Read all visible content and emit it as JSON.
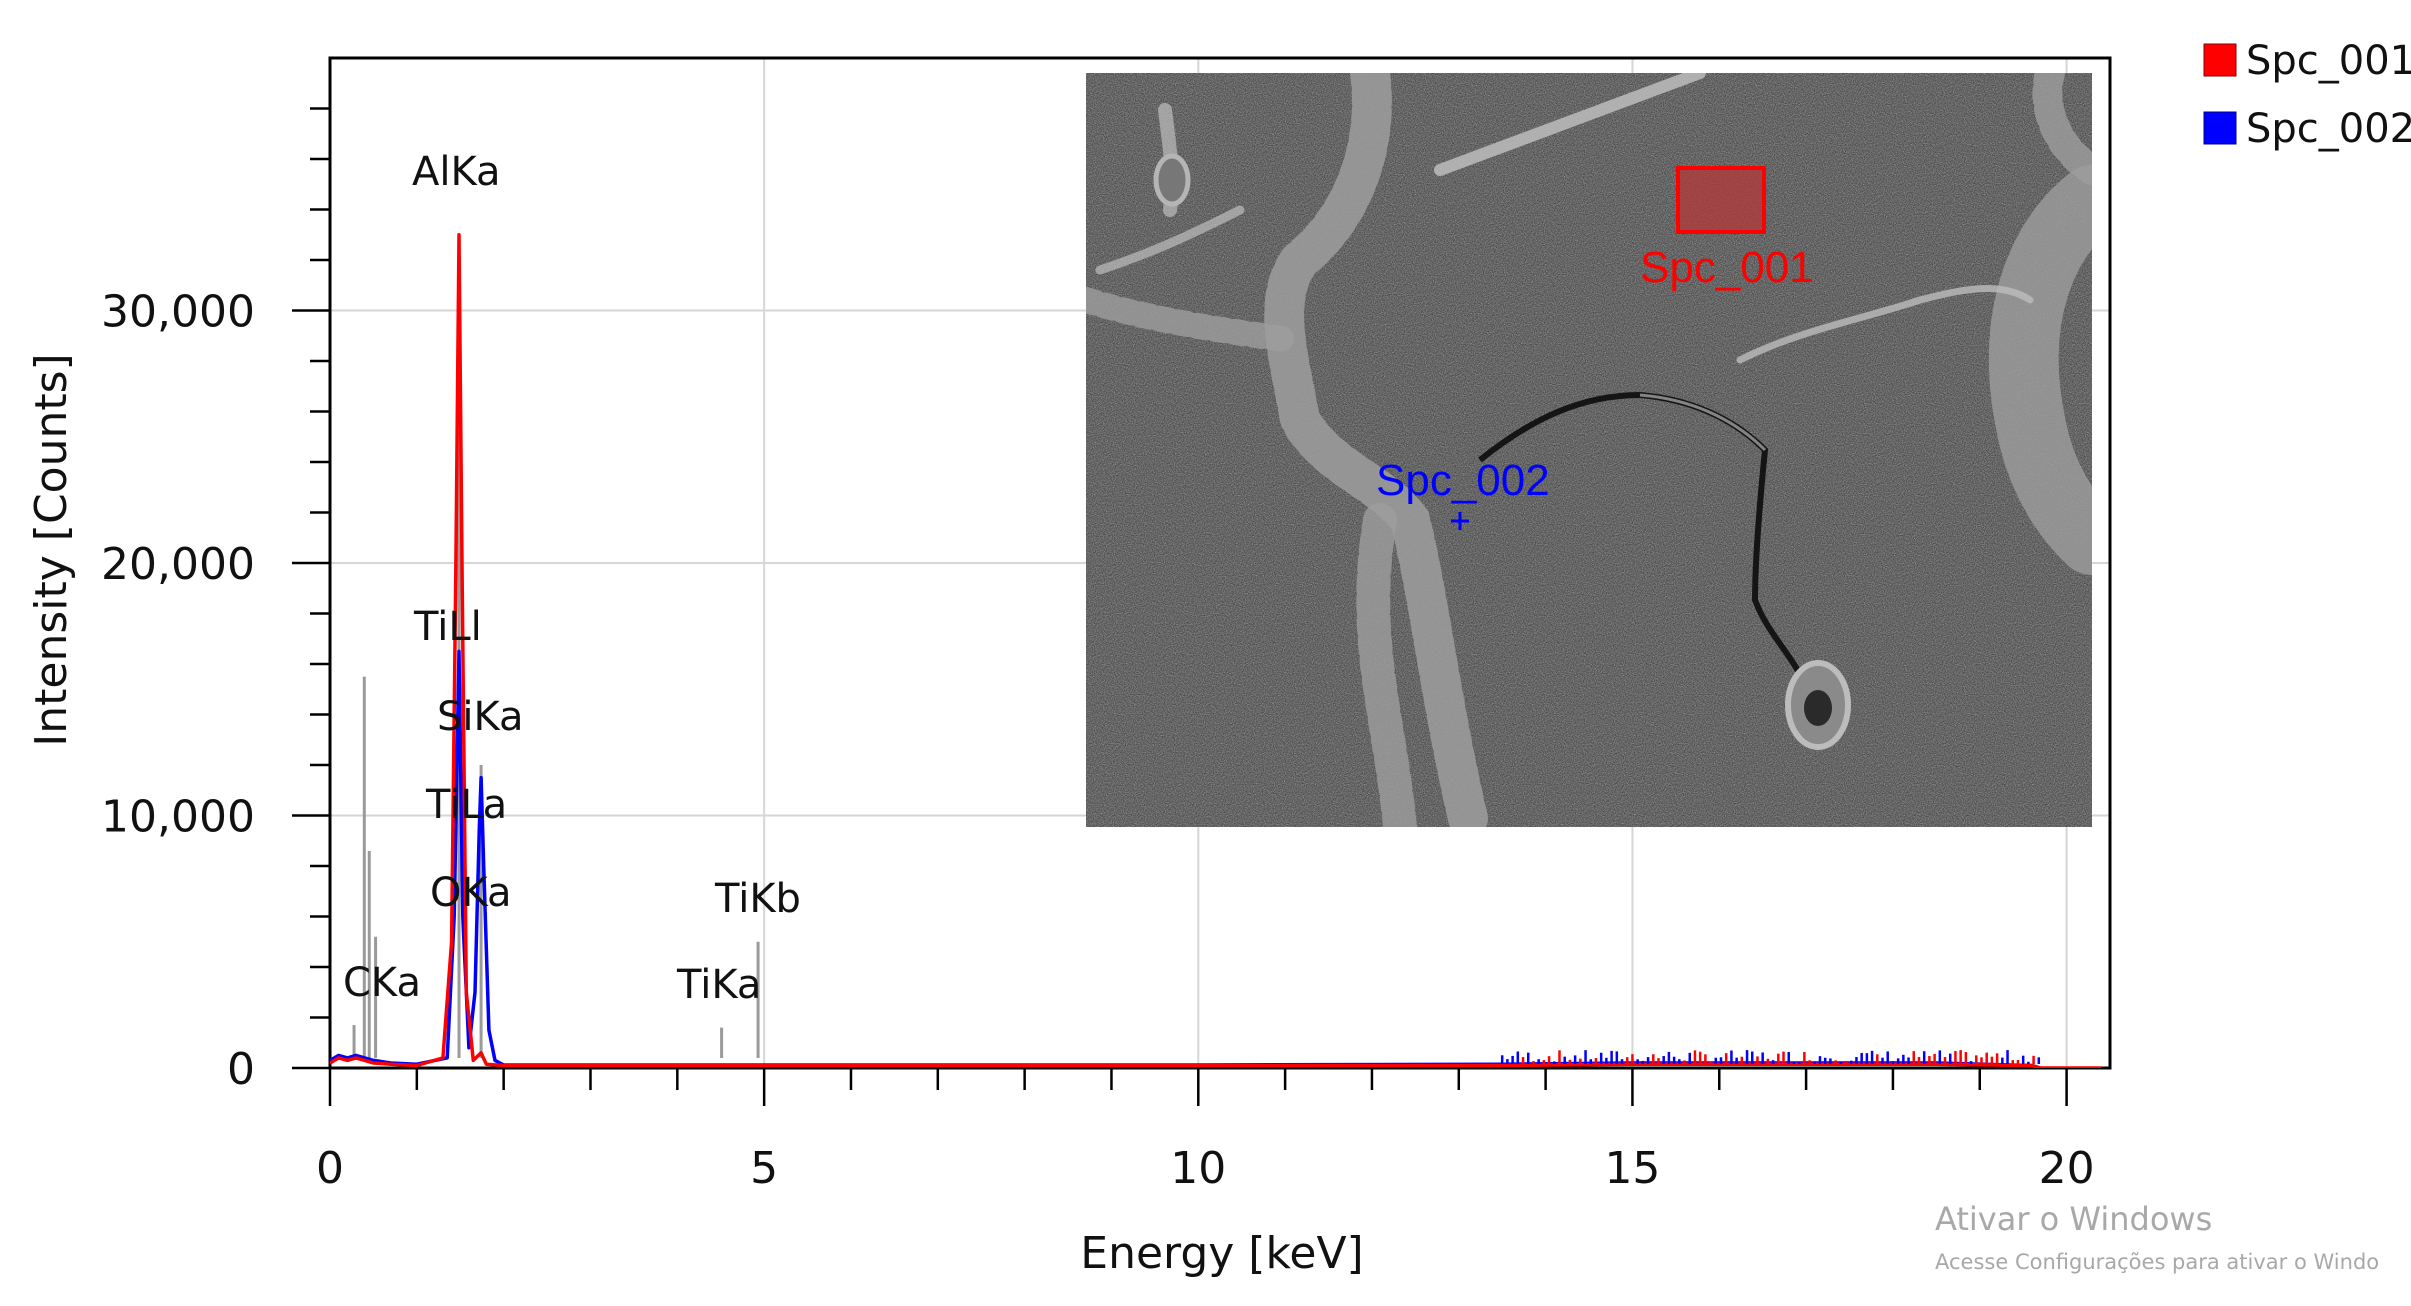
{
  "chart_data": {
    "type": "line",
    "xlabel": "Energy [keV]",
    "ylabel": "Intensity [Counts]",
    "xlim": [
      0,
      20.5
    ],
    "ylim": [
      0,
      40000
    ],
    "x_ticks": [
      0,
      5,
      10,
      15,
      20
    ],
    "x_tick_labels": [
      "0",
      "5",
      "10",
      "15",
      "20"
    ],
    "y_ticks": [
      0,
      10000,
      20000,
      30000
    ],
    "y_tick_labels": [
      "0",
      "10,000",
      "20,000",
      "30,000"
    ],
    "grid": true,
    "legend_position": "top-right, outside plot",
    "series": [
      {
        "name": "Spc_001",
        "color": "#ff0000",
        "x": [
          0,
          0.1,
          0.2,
          0.3,
          0.4,
          0.5,
          0.7,
          1.0,
          1.3,
          1.4,
          1.45,
          1.486,
          1.52,
          1.57,
          1.65,
          1.74,
          1.8,
          2.0,
          5,
          10,
          13.5,
          15,
          17,
          18.5,
          19.6,
          19.7,
          20.4
        ],
        "values": [
          200,
          400,
          300,
          400,
          300,
          200,
          150,
          100,
          400,
          5000,
          20000,
          33000,
          20000,
          3000,
          300,
          600,
          150,
          100,
          100,
          100,
          100,
          150,
          150,
          150,
          100,
          0,
          0
        ]
      },
      {
        "name": "Spc_002",
        "color": "#0000ff",
        "x": [
          0,
          0.1,
          0.2,
          0.3,
          0.4,
          0.5,
          0.7,
          1.0,
          1.35,
          1.43,
          1.486,
          1.53,
          1.6,
          1.67,
          1.72,
          1.74,
          1.77,
          1.83,
          1.9,
          2.0,
          5,
          10,
          13.5,
          15,
          17,
          18.5,
          19.6,
          19.7
        ],
        "values": [
          300,
          500,
          400,
          500,
          400,
          300,
          200,
          150,
          400,
          6000,
          16500,
          6000,
          800,
          3000,
          9500,
          11500,
          8000,
          1500,
          300,
          120,
          120,
          120,
          150,
          200,
          200,
          200,
          100,
          0
        ]
      }
    ],
    "peak_labels": [
      {
        "text": "AlKa",
        "energy": 1.486,
        "marker_top": 33000
      },
      {
        "text": "SiKa",
        "energy": 1.74,
        "marker_top": 12000
      },
      {
        "text": "TiLl",
        "energy": 0.395,
        "marker_top": 15500
      },
      {
        "text": "TiLa",
        "energy": 0.452,
        "marker_top": 8600
      },
      {
        "text": "OKa",
        "energy": 0.525,
        "marker_top": 5200
      },
      {
        "text": "CKa",
        "energy": 0.277,
        "marker_top": 1700
      },
      {
        "text": "TiKa",
        "energy": 4.51,
        "marker_top": 1600
      },
      {
        "text": "TiKb",
        "energy": 4.93,
        "marker_top": 5000
      }
    ],
    "inset_image": {
      "description_labels": [
        {
          "text": "Spc_001",
          "color": "#ff0000"
        },
        {
          "text": "Spc_002",
          "color": "#0000ff"
        }
      ]
    }
  },
  "watermark": {
    "line1": "Ativar o Windows",
    "line2": "Acesse Configurações para ativar o Windo"
  }
}
